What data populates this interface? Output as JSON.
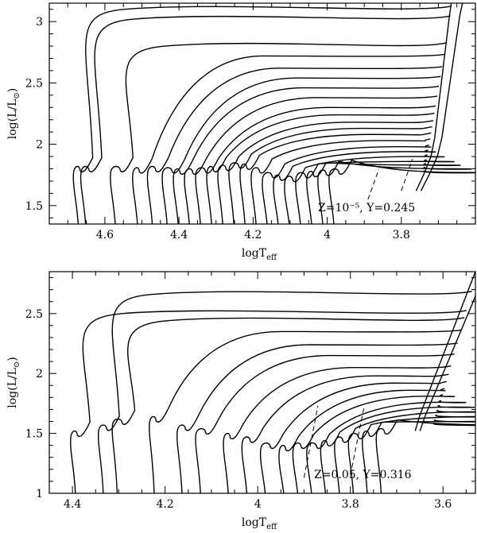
{
  "chart_data": [
    {
      "type": "line",
      "title": "",
      "xlabel": "logT",
      "xlabel_sub": "eff",
      "ylabel": "log(L/L",
      "ylabel_sub": "⊙",
      "ylabel_tail": ")",
      "xlim": [
        4.75,
        3.6
      ],
      "ylim": [
        1.35,
        3.15
      ],
      "xticks": [
        4.6,
        4.4,
        4.2,
        4.0,
        3.8
      ],
      "xticklabels": [
        "4.6",
        "4.4",
        "4.2",
        "4",
        "3.8"
      ],
      "yticks": [
        1.5,
        2.0,
        2.5,
        3.0
      ],
      "yticklabels": [
        "1.5",
        "2",
        "2.5",
        "3"
      ],
      "annotation": "Z=10⁻⁵,  Y=0.245",
      "ms_top_x": [
        4.68,
        4.66,
        4.58,
        4.52,
        4.48,
        4.44,
        4.41,
        4.38,
        4.35,
        4.32,
        4.29,
        4.26,
        4.23,
        4.2,
        4.17,
        4.14,
        4.11,
        4.08,
        4.05,
        4.02,
        3.99
      ],
      "ms_top_y": [
        1.8,
        1.8,
        1.8,
        1.79,
        1.8,
        1.79,
        1.78,
        1.78,
        1.79,
        1.8,
        1.81,
        1.83,
        1.82,
        1.79,
        1.75,
        1.73,
        1.72,
        1.75,
        1.76,
        1.77,
        1.78
      ],
      "giant_start_y": [
        3.1,
        3.02,
        2.8,
        2.72,
        2.62,
        2.54,
        2.46,
        2.38,
        2.3,
        2.24,
        2.18,
        2.13,
        2.08,
        2.03,
        1.98,
        1.94,
        1.9,
        1.86,
        1.83,
        1.8,
        1.77
      ],
      "rgb_x": [
        3.76,
        3.74,
        3.72,
        3.71,
        3.7,
        3.69,
        3.68,
        3.67,
        3.665
      ],
      "rgb_y": [
        1.62,
        1.75,
        1.9,
        2.05,
        2.3,
        2.55,
        2.8,
        3.05,
        3.15
      ],
      "dashed": [
        {
          "x": [
            3.89,
            3.86
          ],
          "y": [
            1.55,
            1.8
          ]
        },
        {
          "x": [
            3.8,
            3.77
          ],
          "y": [
            1.62,
            1.88
          ]
        }
      ]
    },
    {
      "type": "line",
      "title": "",
      "xlabel": "logT",
      "xlabel_sub": "eff",
      "ylabel": "log(L/L",
      "ylabel_sub": "⊙",
      "ylabel_tail": ")",
      "xlim": [
        4.45,
        3.53
      ],
      "ylim": [
        1.0,
        2.85
      ],
      "xticks": [
        4.4,
        4.2,
        4.0,
        3.8,
        3.6
      ],
      "xticklabels": [
        "4.4",
        "4.2",
        "4",
        "3.8",
        "3.6"
      ],
      "yticks": [
        1.0,
        1.5,
        2.0,
        2.5
      ],
      "yticklabels": [
        "1",
        "1.5",
        "2",
        "2.5"
      ],
      "annotation": "Z=0.05,  Y=0.316",
      "ms_top_x": [
        4.4,
        4.34,
        4.31,
        4.23,
        4.17,
        4.13,
        4.07,
        4.03,
        3.99,
        3.95,
        3.92,
        3.89,
        3.86,
        3.83,
        3.8,
        3.77,
        3.74
      ],
      "ms_top_y": [
        1.5,
        1.55,
        1.6,
        1.62,
        1.55,
        1.52,
        1.48,
        1.45,
        1.4,
        1.38,
        1.4,
        1.4,
        1.42,
        1.45,
        1.48,
        1.5,
        1.52
      ],
      "giant_start_y": [
        2.5,
        2.66,
        2.44,
        2.35,
        2.24,
        2.15,
        2.05,
        1.98,
        1.92,
        1.86,
        1.81,
        1.76,
        1.72,
        1.68,
        1.64,
        1.6,
        1.57
      ],
      "rgb_x": [
        3.66,
        3.65,
        3.63,
        3.61,
        3.59,
        3.57,
        3.55,
        3.53
      ],
      "rgb_y": [
        1.52,
        1.65,
        1.85,
        2.05,
        2.25,
        2.45,
        2.65,
        2.85
      ],
      "dashed": [
        {
          "x": [
            3.9,
            3.87
          ],
          "y": [
            1.13,
            1.73
          ]
        },
        {
          "x": [
            3.8,
            3.77
          ],
          "y": [
            1.15,
            1.73
          ]
        }
      ]
    }
  ]
}
